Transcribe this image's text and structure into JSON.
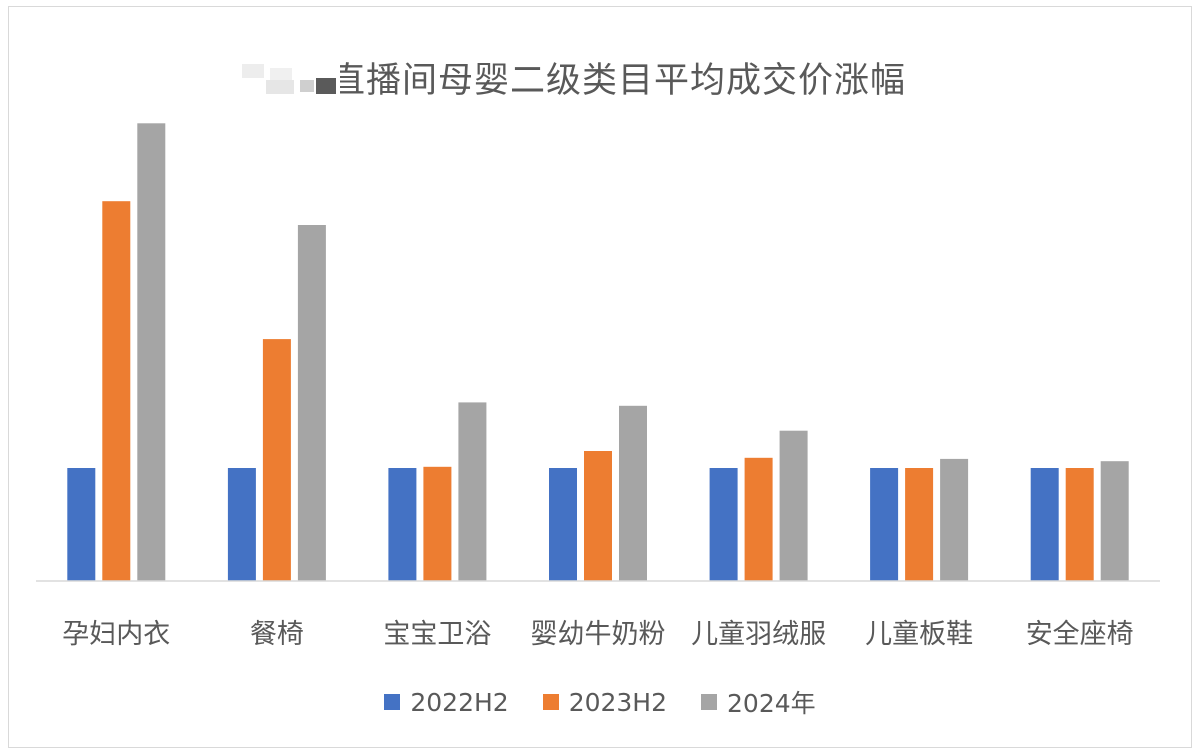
{
  "chart_data": {
    "type": "bar",
    "title": "椅直播间母婴二级类目平均成交价涨幅",
    "categories": [
      "孕妇内衣",
      "餐椅",
      "宝宝卫浴",
      "婴幼牛奶粉",
      "儿童羽绒服",
      "儿童板鞋",
      "安全座椅"
    ],
    "series": [
      {
        "name": "2022H2",
        "color": "#4472C4",
        "values": [
          1.0,
          1.0,
          1.0,
          1.0,
          1.0,
          1.0,
          1.0
        ]
      },
      {
        "name": "2023H2",
        "color": "#ED7D31",
        "values": [
          3.36,
          2.14,
          1.01,
          1.15,
          1.09,
          1.0,
          1.0
        ]
      },
      {
        "name": "2024年",
        "color": "#A5A5A5",
        "values": [
          4.05,
          3.15,
          1.58,
          1.55,
          1.33,
          1.08,
          1.06
        ]
      }
    ],
    "ylim": [
      0,
      4.3
    ],
    "xlabel": "",
    "ylabel": "",
    "grid": false,
    "legend": "bottom",
    "axis_color": "#D9D9D9",
    "text_color": "#595959"
  }
}
